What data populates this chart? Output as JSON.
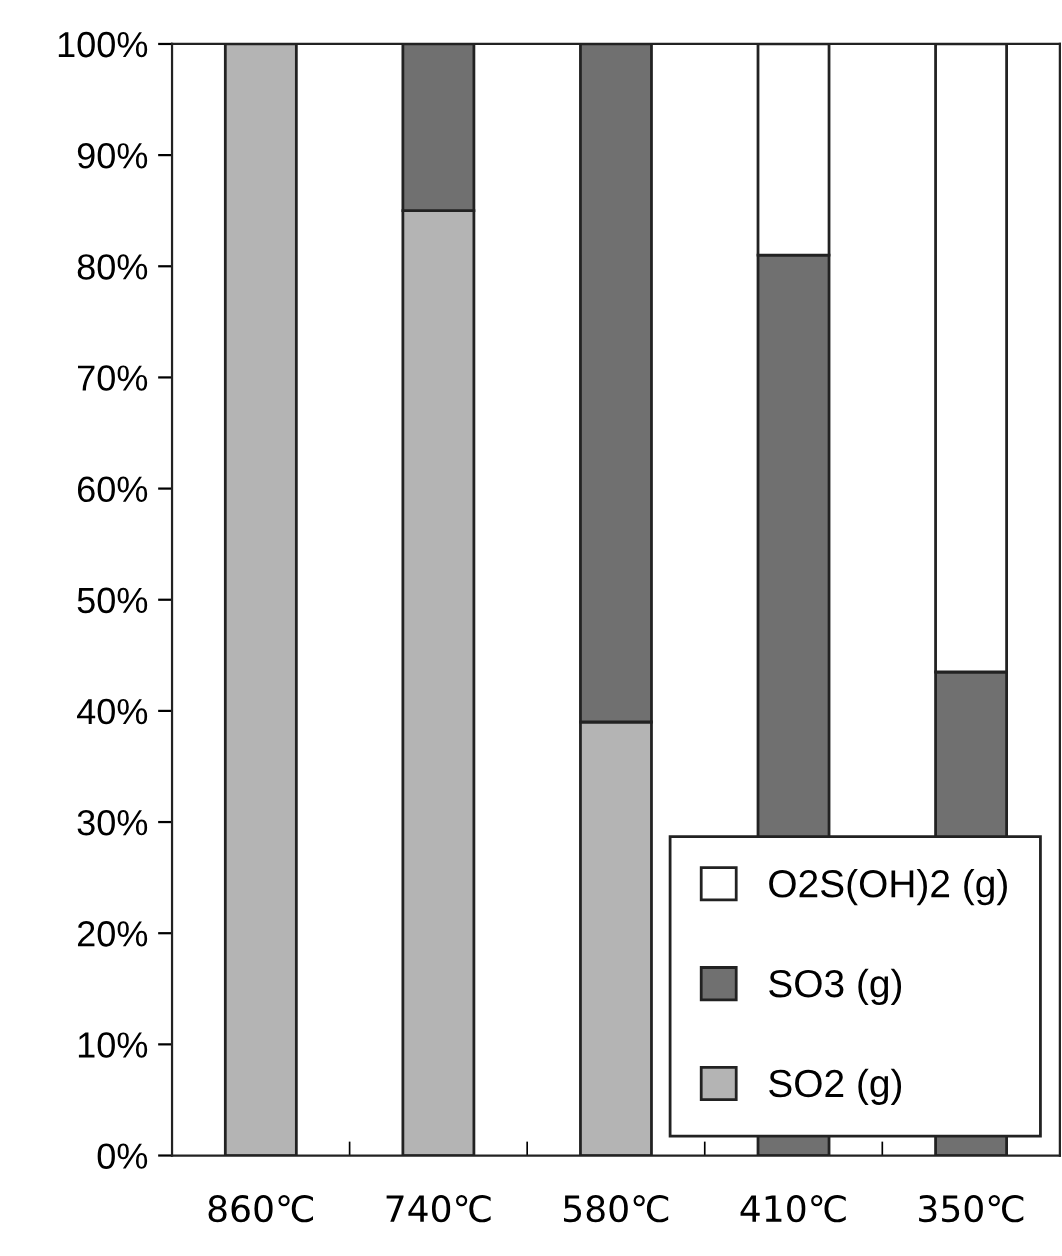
{
  "chart_data": {
    "type": "bar",
    "stacked": true,
    "categories": [
      "860℃",
      "740℃",
      "580℃",
      "410℃",
      "350℃"
    ],
    "series": [
      {
        "name": "SO2 (g)",
        "color": "#b4b4b4",
        "values": [
          100,
          85,
          39,
          0,
          0
        ]
      },
      {
        "name": "SO3 (g)",
        "color": "#707070",
        "values": [
          0,
          15,
          61,
          81,
          43.5
        ]
      },
      {
        "name": "O2S(OH)2 (g)",
        "color": "#ffffff",
        "values": [
          0,
          0,
          0,
          19,
          56.5
        ]
      }
    ],
    "ylim": [
      0,
      100
    ],
    "yticks": [
      {
        "value": 0,
        "label": "0%"
      },
      {
        "value": 10,
        "label": "10%"
      },
      {
        "value": 20,
        "label": "20%"
      },
      {
        "value": 30,
        "label": "30%"
      },
      {
        "value": 40,
        "label": "40%"
      },
      {
        "value": 50,
        "label": "50%"
      },
      {
        "value": 60,
        "label": "60%"
      },
      {
        "value": 70,
        "label": "70%"
      },
      {
        "value": 80,
        "label": "80%"
      },
      {
        "value": 90,
        "label": "90%"
      },
      {
        "value": 100,
        "label": "100%"
      }
    ],
    "grid": false,
    "legend": "bottom right"
  }
}
